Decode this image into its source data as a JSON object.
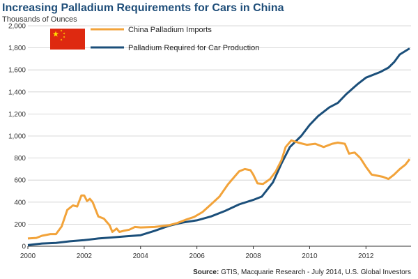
{
  "chart_data": {
    "type": "line",
    "title": "Increasing Palladium Requirements for Cars in China",
    "ylabel": "Thousands of Ounces",
    "xlabel": "",
    "xlim": [
      2000,
      2013.6
    ],
    "ylim": [
      0,
      2000
    ],
    "x_ticks": [
      "2000",
      "2002",
      "2004",
      "2006",
      "2008",
      "2010",
      "2012"
    ],
    "y_ticks": [
      "0",
      "200",
      "400",
      "600",
      "800",
      "1,000",
      "1,200",
      "1,400",
      "1,600",
      "1,800",
      "2,000"
    ],
    "grid": true,
    "legend_position": "top-left",
    "colors": {
      "imports": "#f2a33a",
      "required": "#1b4f7a",
      "grid": "#cccccc"
    },
    "flag_icon": "china-flag-icon",
    "series": [
      {
        "name": "China Palladium Imports",
        "color": "#f2a33a",
        "points": [
          [
            2000.0,
            70
          ],
          [
            2000.3,
            75
          ],
          [
            2000.5,
            95
          ],
          [
            2000.8,
            110
          ],
          [
            2001.0,
            110
          ],
          [
            2001.2,
            180
          ],
          [
            2001.4,
            330
          ],
          [
            2001.6,
            370
          ],
          [
            2001.75,
            360
          ],
          [
            2001.9,
            460
          ],
          [
            2002.0,
            460
          ],
          [
            2002.1,
            410
          ],
          [
            2002.2,
            430
          ],
          [
            2002.3,
            400
          ],
          [
            2002.5,
            270
          ],
          [
            2002.7,
            250
          ],
          [
            2002.9,
            190
          ],
          [
            2003.0,
            130
          ],
          [
            2003.15,
            160
          ],
          [
            2003.25,
            130
          ],
          [
            2003.4,
            140
          ],
          [
            2003.6,
            150
          ],
          [
            2003.8,
            175
          ],
          [
            2004.0,
            170
          ],
          [
            2004.5,
            175
          ],
          [
            2005.0,
            190
          ],
          [
            2005.3,
            210
          ],
          [
            2005.6,
            240
          ],
          [
            2005.9,
            265
          ],
          [
            2006.2,
            310
          ],
          [
            2006.5,
            380
          ],
          [
            2006.8,
            450
          ],
          [
            2007.1,
            560
          ],
          [
            2007.3,
            620
          ],
          [
            2007.5,
            680
          ],
          [
            2007.7,
            700
          ],
          [
            2007.9,
            690
          ],
          [
            2008.0,
            650
          ],
          [
            2008.15,
            570
          ],
          [
            2008.35,
            565
          ],
          [
            2008.6,
            610
          ],
          [
            2008.8,
            680
          ],
          [
            2009.0,
            780
          ],
          [
            2009.15,
            900
          ],
          [
            2009.35,
            960
          ],
          [
            2009.6,
            940
          ],
          [
            2009.9,
            920
          ],
          [
            2010.2,
            930
          ],
          [
            2010.5,
            900
          ],
          [
            2010.8,
            930
          ],
          [
            2011.0,
            940
          ],
          [
            2011.25,
            930
          ],
          [
            2011.4,
            840
          ],
          [
            2011.6,
            850
          ],
          [
            2011.8,
            800
          ],
          [
            2012.0,
            720
          ],
          [
            2012.2,
            650
          ],
          [
            2012.4,
            640
          ],
          [
            2012.6,
            630
          ],
          [
            2012.8,
            610
          ],
          [
            2013.0,
            650
          ],
          [
            2013.2,
            700
          ],
          [
            2013.4,
            740
          ],
          [
            2013.55,
            790
          ]
        ]
      },
      {
        "name": "Palladium Required for Car Production",
        "color": "#1b4f7a",
        "points": [
          [
            2000.0,
            10
          ],
          [
            2000.5,
            25
          ],
          [
            2001.0,
            30
          ],
          [
            2001.5,
            45
          ],
          [
            2002.0,
            55
          ],
          [
            2002.5,
            70
          ],
          [
            2003.0,
            80
          ],
          [
            2003.5,
            90
          ],
          [
            2004.0,
            100
          ],
          [
            2004.5,
            140
          ],
          [
            2005.0,
            185
          ],
          [
            2005.5,
            215
          ],
          [
            2006.0,
            235
          ],
          [
            2006.5,
            270
          ],
          [
            2007.0,
            320
          ],
          [
            2007.5,
            380
          ],
          [
            2008.0,
            420
          ],
          [
            2008.3,
            450
          ],
          [
            2008.7,
            580
          ],
          [
            2009.0,
            750
          ],
          [
            2009.3,
            900
          ],
          [
            2009.7,
            1000
          ],
          [
            2010.0,
            1100
          ],
          [
            2010.3,
            1180
          ],
          [
            2010.7,
            1260
          ],
          [
            2011.0,
            1300
          ],
          [
            2011.3,
            1380
          ],
          [
            2011.7,
            1470
          ],
          [
            2012.0,
            1530
          ],
          [
            2012.5,
            1580
          ],
          [
            2012.8,
            1620
          ],
          [
            2013.0,
            1670
          ],
          [
            2013.2,
            1740
          ],
          [
            2013.55,
            1795
          ]
        ]
      }
    ],
    "source_label": "Source:",
    "source_text": "GTIS, Macquarie Research - July 2014, U.S. Global Investors"
  }
}
